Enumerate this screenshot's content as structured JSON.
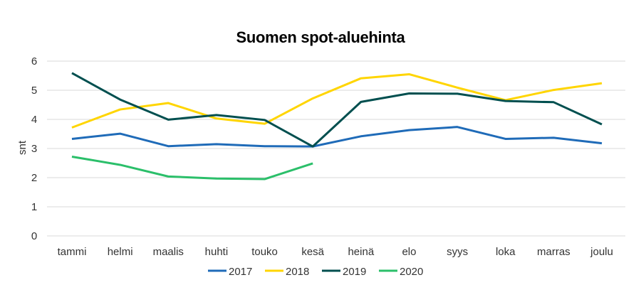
{
  "chart_data": {
    "type": "line",
    "title": "Suomen spot-aluehinta",
    "xlabel": "",
    "ylabel": "snt",
    "ylim": [
      0,
      6
    ],
    "yticks": [
      0,
      1,
      2,
      3,
      4,
      5,
      6
    ],
    "grid": true,
    "legend": "bottom",
    "categories": [
      "tammi",
      "helmi",
      "maalis",
      "huhti",
      "touko",
      "kesä",
      "heinä",
      "elo",
      "syys",
      "loka",
      "marras",
      "joulu"
    ],
    "series": [
      {
        "name": "2017",
        "color": "#1f6bb8",
        "values": [
          3.33,
          3.51,
          3.08,
          3.15,
          3.08,
          3.07,
          3.42,
          3.63,
          3.74,
          3.33,
          3.37,
          3.18
        ]
      },
      {
        "name": "2018",
        "color": "#ffd500",
        "values": [
          3.72,
          4.34,
          4.56,
          4.03,
          3.85,
          4.72,
          5.41,
          5.55,
          5.09,
          4.66,
          5.01,
          5.24
        ]
      },
      {
        "name": "2019",
        "color": "#004f4f",
        "values": [
          5.59,
          4.68,
          3.99,
          4.15,
          3.98,
          3.07,
          4.6,
          4.89,
          4.88,
          4.63,
          4.59,
          3.83
        ]
      },
      {
        "name": "2020",
        "color": "#2bbf6a",
        "values": [
          2.72,
          2.44,
          2.04,
          1.97,
          1.95,
          2.49,
          null,
          null,
          null,
          null,
          null,
          null
        ]
      }
    ]
  }
}
